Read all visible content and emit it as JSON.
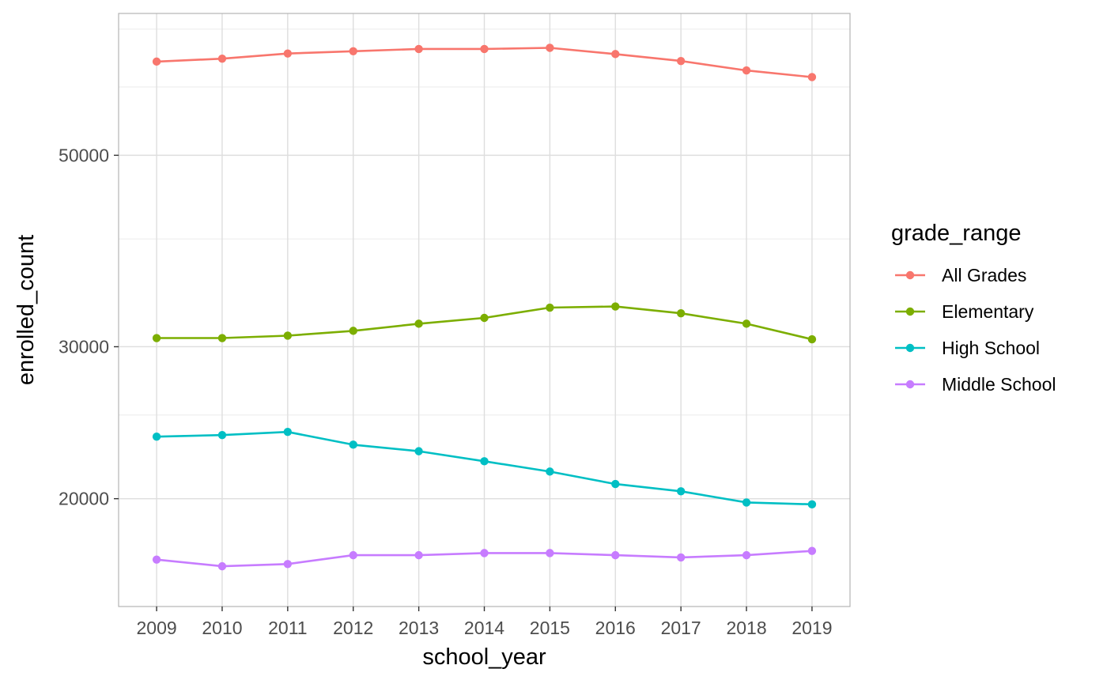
{
  "chart_data": {
    "type": "line",
    "xlabel": "school_year",
    "ylabel": "enrolled_count",
    "x": [
      2009,
      2010,
      2011,
      2012,
      2013,
      2014,
      2015,
      2016,
      2017,
      2018,
      2019
    ],
    "xlim": [
      2008.42,
      2019.58
    ],
    "ylim": [
      15000,
      73000
    ],
    "y_scale": "log",
    "y_ticks": [
      20000,
      30000,
      50000
    ],
    "y_tick_labels": [
      "20000",
      "30000",
      "50000"
    ],
    "y_minor_ticks": [
      15000,
      25000,
      40000,
      60000,
      70000
    ],
    "grid": true,
    "legend": {
      "title": "grade_range",
      "position": "right"
    },
    "series": [
      {
        "name": "All Grades",
        "color": "#F8766D",
        "values": [
          64200,
          64700,
          65600,
          66000,
          66400,
          66400,
          66600,
          65500,
          64300,
          62700,
          61600
        ]
      },
      {
        "name": "Elementary",
        "color": "#7CAE00",
        "values": [
          30700,
          30700,
          30900,
          31300,
          31900,
          32400,
          33300,
          33400,
          32800,
          31900,
          30600
        ]
      },
      {
        "name": "High School",
        "color": "#00BFC4",
        "values": [
          23600,
          23700,
          23900,
          23100,
          22700,
          22100,
          21500,
          20800,
          20400,
          19800,
          19700
        ]
      },
      {
        "name": "Middle School",
        "color": "#C77CFF",
        "values": [
          17000,
          16700,
          16800,
          17200,
          17200,
          17300,
          17300,
          17200,
          17100,
          17200,
          17400
        ]
      }
    ]
  }
}
